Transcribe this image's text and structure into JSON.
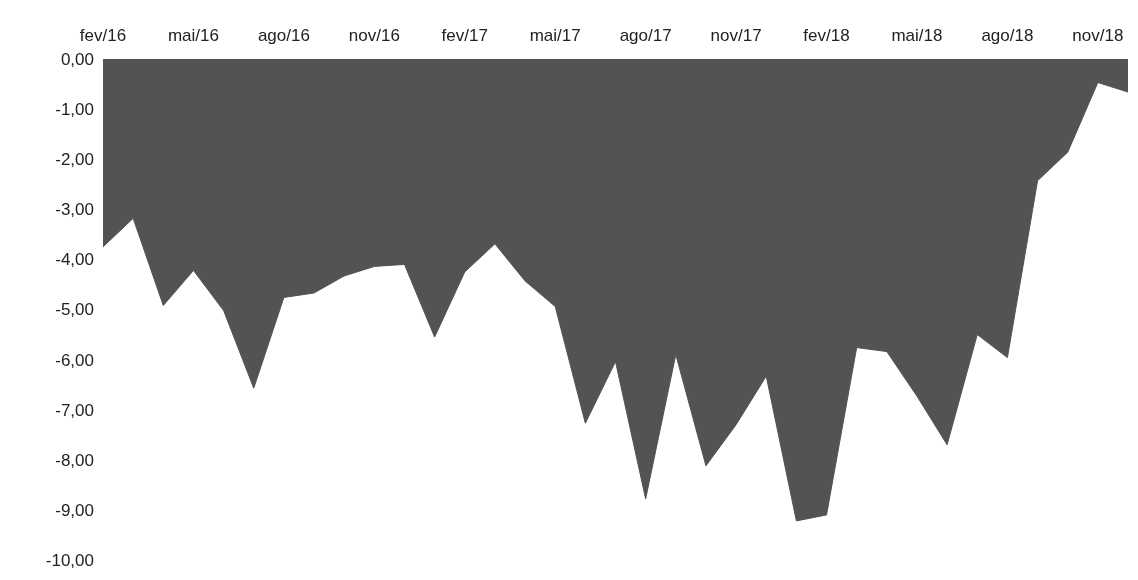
{
  "chart_data": {
    "type": "area",
    "categories": [
      "fev/16",
      null,
      null,
      "mai/16",
      null,
      null,
      "ago/16",
      null,
      null,
      "nov/16",
      null,
      null,
      "fev/17",
      null,
      null,
      "mai/17",
      null,
      null,
      "ago/17",
      null,
      null,
      "nov/17",
      null,
      null,
      "fev/18",
      null,
      null,
      "mai/18",
      null,
      null,
      "ago/18",
      null,
      null,
      "nov/18",
      null
    ],
    "series": [
      {
        "color": "#535353",
        "values": [
          -3.75,
          -3.18,
          -4.92,
          -4.22,
          -5.02,
          -6.57,
          -4.76,
          -4.67,
          -4.33,
          -4.14,
          -4.1,
          -5.55,
          -4.25,
          -3.69,
          -4.43,
          -4.94,
          -7.27,
          -6.04,
          -8.78,
          -5.9,
          -8.12,
          -7.3,
          -6.33,
          -9.22,
          -9.1,
          -5.76,
          -5.84,
          -6.73,
          -7.7,
          -5.5,
          -5.96,
          -2.43,
          -1.86,
          -0.47,
          -0.66
        ]
      }
    ],
    "ylim": [
      -10,
      0
    ],
    "yticks": [
      {
        "value": 0,
        "label": "0,00"
      },
      {
        "value": -1,
        "label": "-1,00"
      },
      {
        "value": -2,
        "label": "-2,00"
      },
      {
        "value": -3,
        "label": "-3,00"
      },
      {
        "value": -4,
        "label": "-4,00"
      },
      {
        "value": -5,
        "label": "-5,00"
      },
      {
        "value": -6,
        "label": "-6,00"
      },
      {
        "value": -7,
        "label": "-7,00"
      },
      {
        "value": -8,
        "label": "-8,00"
      },
      {
        "value": -9,
        "label": "-9,00"
      },
      {
        "value": -10,
        "label": "-10,00"
      }
    ],
    "orientation": "vertical"
  }
}
